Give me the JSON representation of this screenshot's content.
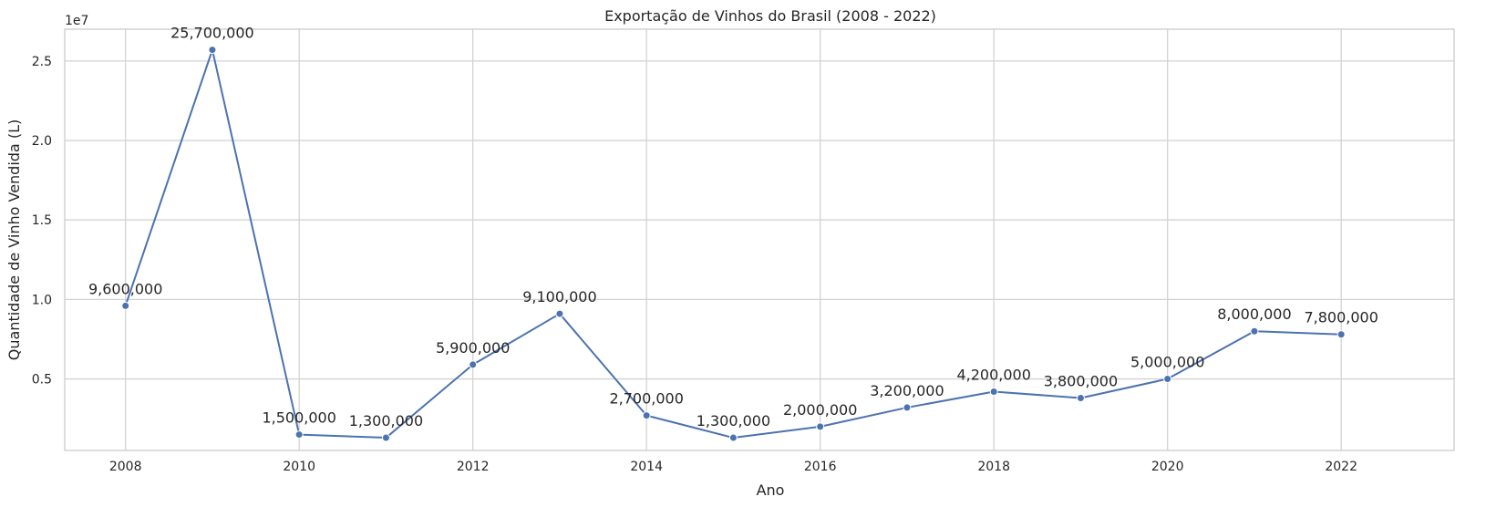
{
  "chart_data": {
    "type": "line",
    "title": "Exportação de Vinhos do Brasil (2008 - 2022)",
    "xlabel": "Ano",
    "ylabel": "Quantidade de Vinho Vendida (L)",
    "y_offset_label": "1e7",
    "x": [
      2008,
      2009,
      2010,
      2011,
      2012,
      2013,
      2014,
      2015,
      2016,
      2017,
      2018,
      2019,
      2020,
      2021,
      2022
    ],
    "series": [
      {
        "values": [
          9600000,
          25700000,
          1500000,
          1300000,
          5900000,
          9100000,
          2700000,
          1300000,
          2000000,
          3200000,
          4200000,
          3800000,
          5000000,
          8000000,
          7800000
        ],
        "data_labels": [
          "9,600,000",
          "25,700,000",
          "1,500,000",
          "1,300,000",
          "5,900,000",
          "9,100,000",
          "2,700,000",
          "1,300,000",
          "2,000,000",
          "3,200,000",
          "4,200,000",
          "3,800,000",
          "5,000,000",
          "8,000,000",
          "7,800,000"
        ],
        "color": "#4c72b0"
      }
    ],
    "xlim": [
      2007.3,
      2023.3
    ],
    "ylim": [
      500000,
      27000000
    ],
    "x_ticks": [
      2008,
      2010,
      2012,
      2014,
      2016,
      2018,
      2020,
      2022
    ],
    "x_tick_labels": [
      "2008",
      "2010",
      "2012",
      "2014",
      "2016",
      "2018",
      "2020",
      "2022"
    ],
    "y_ticks": [
      5000000,
      10000000,
      15000000,
      20000000,
      25000000
    ],
    "y_tick_labels": [
      "0.5",
      "1.0",
      "1.5",
      "2.0",
      "2.5"
    ],
    "grid": true,
    "colors": {
      "line": "#4c72b0",
      "grid": "#d3d3d3",
      "text": "#262626"
    }
  }
}
